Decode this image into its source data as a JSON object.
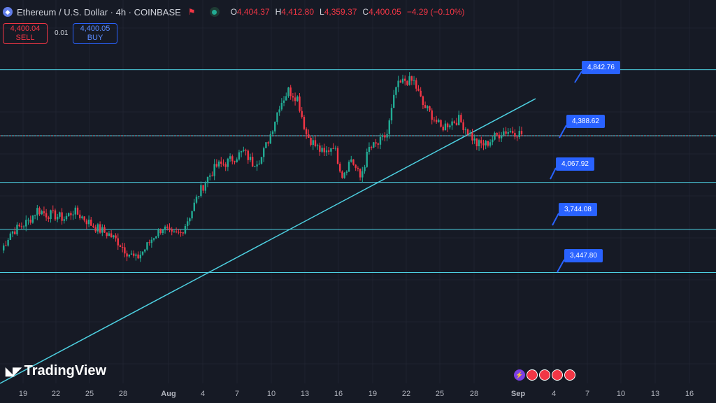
{
  "header": {
    "symbol_title": "Ethereum / U.S. Dollar · 4h · COINBASE",
    "ohlc": {
      "open_label": "O",
      "open": "4,404.37",
      "high_label": "H",
      "high": "4,412.80",
      "low_label": "L",
      "low": "4,359.37",
      "close_label": "C",
      "close": "4,400.05",
      "change": "−4.29 (−0.10%)"
    }
  },
  "trade": {
    "sell_price": "4,400.04",
    "sell_label": "SELL",
    "spread": "0.01",
    "buy_price": "4,400.05",
    "buy_label": "BUY"
  },
  "levels": [
    {
      "value": 4842.76,
      "label": "4,842.76"
    },
    {
      "value": 4388.62,
      "label": "4,388.62"
    },
    {
      "value": 4067.92,
      "label": "4,067.92"
    },
    {
      "value": 3744.08,
      "label": "3,744.08"
    },
    {
      "value": 3447.8,
      "label": "3,447.80"
    }
  ],
  "xaxis": [
    "19",
    "22",
    "25",
    "28",
    "Aug",
    "4",
    "7",
    "10",
    "13",
    "16",
    "19",
    "22",
    "25",
    "28",
    "Sep",
    "4",
    "7",
    "10",
    "13",
    "16"
  ],
  "brand": "TradingView",
  "colors": {
    "up": "#22ab94",
    "down": "#f23645",
    "line": "#4dd0e1",
    "accent": "#2962ff"
  },
  "chart_data": {
    "type": "candlestick",
    "timeframe": "4h",
    "close_approx": [
      3600,
      3720,
      3760,
      3800,
      3880,
      3850,
      3840,
      3820,
      3870,
      3830,
      3780,
      3740,
      3710,
      3660,
      3590,
      3540,
      3610,
      3700,
      3760,
      3700,
      3720,
      3840,
      3990,
      4100,
      4180,
      4200,
      4240,
      4280,
      4200,
      4240,
      4400,
      4600,
      4700,
      4650,
      4400,
      4320,
      4260,
      4330,
      4120,
      4230,
      4100,
      4300,
      4330,
      4400,
      4720,
      4770,
      4760,
      4600,
      4530,
      4440,
      4480,
      4500,
      4420,
      4330,
      4330,
      4380,
      4420,
      4420,
      4400
    ]
  }
}
